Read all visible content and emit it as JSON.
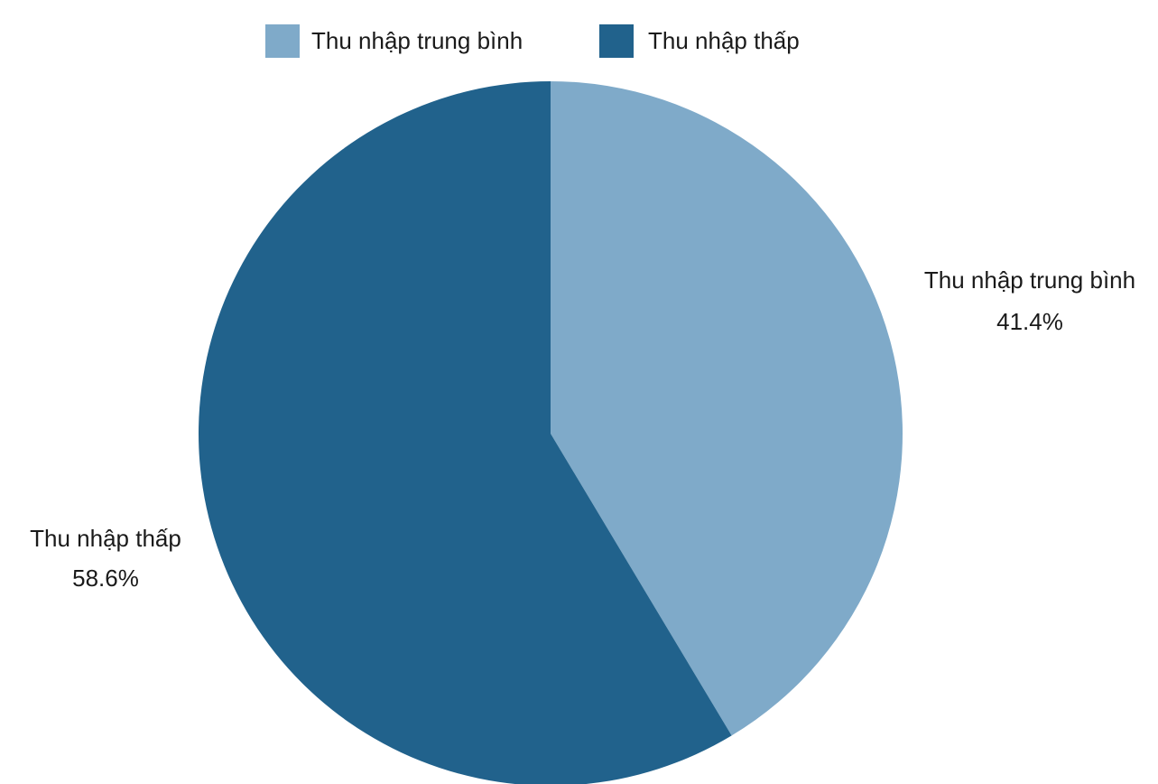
{
  "chart_data": {
    "type": "pie",
    "categories": [
      "Thu nhập trung bình",
      "Thu nhập thấp"
    ],
    "values": [
      41.4,
      58.6
    ],
    "value_labels": [
      "41.4%",
      "58.6%"
    ],
    "colors": [
      "#7faac9",
      "#21628c"
    ],
    "legend": {
      "placement": "top-center",
      "entries": [
        "Thu nhập trung bình",
        "Thu nhập thấp"
      ]
    },
    "start_angle": "12 o'clock",
    "direction": "clockwise"
  }
}
